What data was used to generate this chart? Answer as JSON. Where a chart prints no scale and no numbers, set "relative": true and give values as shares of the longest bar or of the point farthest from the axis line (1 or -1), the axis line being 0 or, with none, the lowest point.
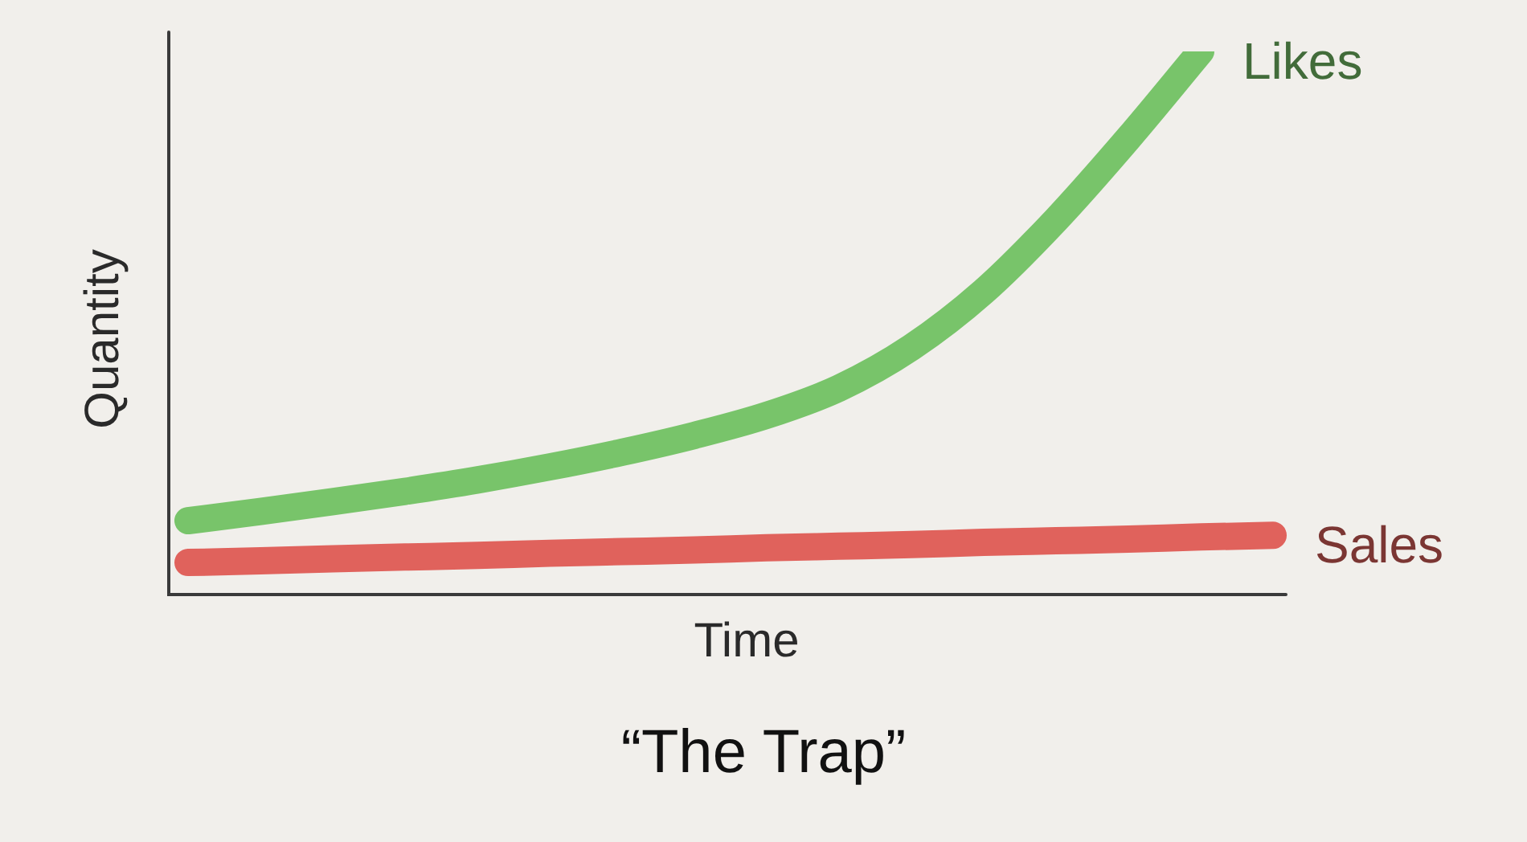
{
  "chart_data": {
    "type": "line",
    "title": "“The Trap”",
    "xlabel": "Time",
    "ylabel": "Quantity",
    "relative": true,
    "marker": "none",
    "categories": [
      null,
      null,
      null,
      null,
      null,
      null,
      null,
      null,
      null,
      null,
      null,
      null,
      null,
      null,
      null,
      null
    ],
    "series": [
      {
        "name": "Likes",
        "color": "#78c46a",
        "values": [
          0.136,
          0.153,
          0.171,
          0.19,
          0.211,
          0.235,
          0.262,
          0.293,
          0.33,
          0.38,
          0.455,
          0.558,
          0.69,
          0.84,
          1,
          null
        ]
      },
      {
        "name": "Sales",
        "color": "#e0625c",
        "values": [
          0.059,
          0.062,
          0.066,
          0.069,
          0.072,
          0.076,
          0.079,
          0.082,
          0.086,
          0.089,
          0.092,
          0.096,
          0.099,
          0.102,
          0.106,
          0.109
        ]
      }
    ]
  }
}
